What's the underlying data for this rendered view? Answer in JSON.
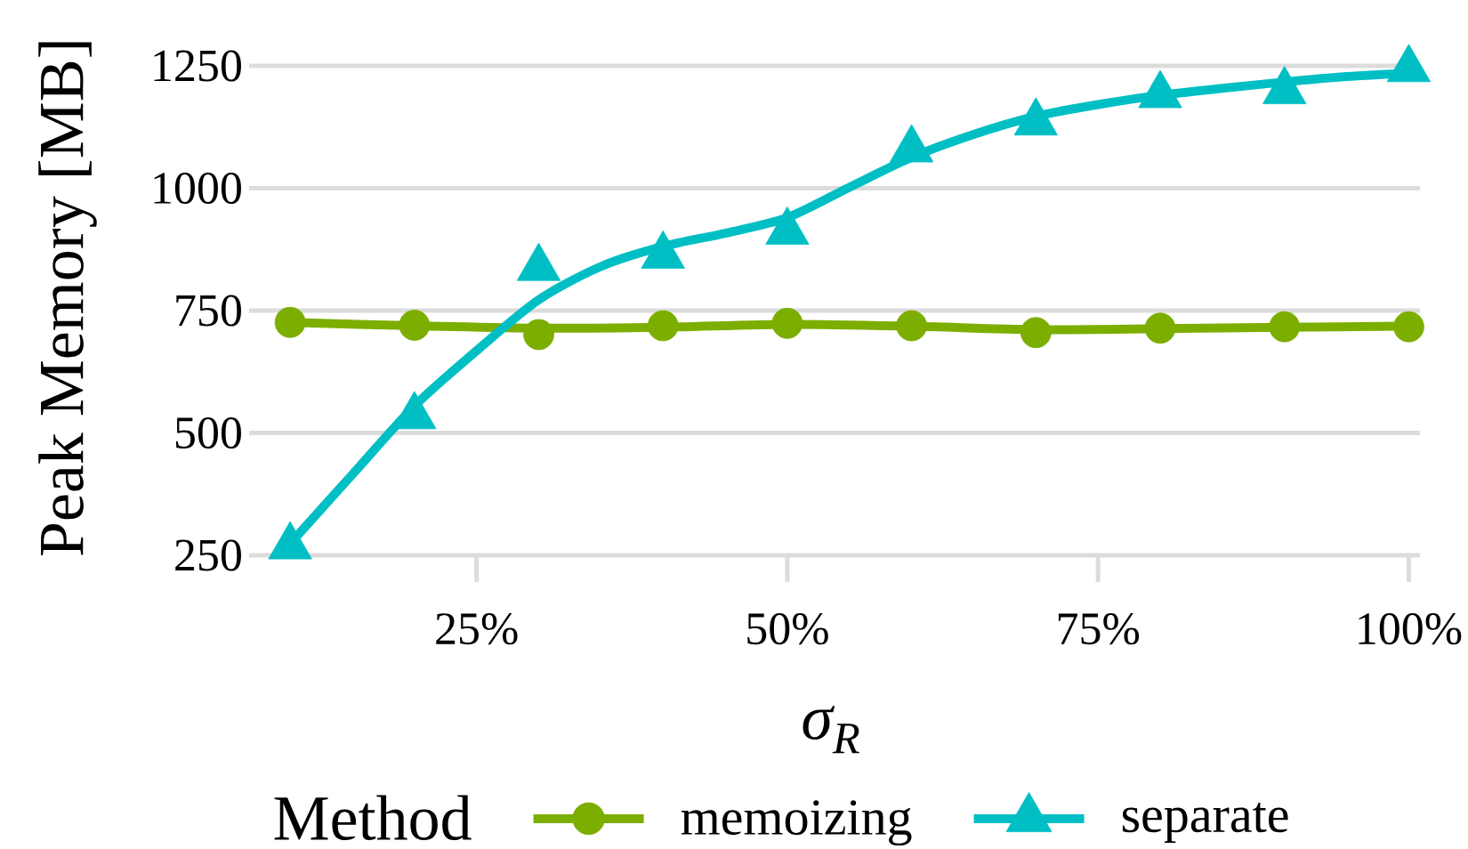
{
  "chart_data": {
    "type": "scatter",
    "xlabel": "σ$_{R}$",
    "ylabel": "Peak Memory [MB]",
    "legend_title": "Method",
    "x": [
      0.1,
      0.2,
      0.3,
      0.4,
      0.5,
      0.6,
      0.7,
      0.8,
      0.9,
      1.0
    ],
    "series": [
      {
        "type": "line",
        "color": "#7cae00",
        "x": [
          0.1,
          0.2,
          0.3,
          0.4,
          0.5,
          0.6,
          0.7,
          0.8,
          0.9,
          1.0
        ],
        "values": [
          726,
          719,
          714,
          716,
          722,
          718,
          711,
          713,
          716,
          718
        ]
      },
      {
        "name": "memoizing",
        "color": "#7cae00",
        "marker": "circle",
        "values": [
          726,
          720,
          701,
          719,
          724,
          719,
          705,
          714,
          717,
          717
        ]
      },
      {
        "type": "line",
        "color": "#00bfc4",
        "x": [
          0.1,
          0.15,
          0.2,
          0.25,
          0.3,
          0.35,
          0.4,
          0.45,
          0.5,
          0.55,
          0.6,
          0.65,
          0.7,
          0.75,
          0.8,
          0.85,
          0.9,
          0.95,
          1.0
        ],
        "values": [
          274,
          415,
          555,
          668,
          772,
          840,
          881,
          908,
          940,
          1002,
          1063,
          1110,
          1147,
          1171,
          1190,
          1204,
          1217,
          1228,
          1235
        ]
      },
      {
        "name": "separate",
        "color": "#00bfc4",
        "marker": "triangle",
        "values": [
          268,
          534,
          837,
          862,
          911,
          1079,
          1134,
          1190,
          1198,
          1243
        ]
      }
    ],
    "xlim": [
      0.067,
      1.009
    ],
    "ylim": [
      250,
      1250
    ],
    "xticks": [
      {
        "value": 0.25,
        "label": "25%"
      },
      {
        "value": 0.5,
        "label": "50%"
      },
      {
        "value": 0.75,
        "label": "75%"
      },
      {
        "value": 1.0,
        "label": "100%"
      }
    ],
    "yticks": [
      250,
      500,
      750,
      1000,
      1250
    ],
    "grid": "y",
    "legend": "bottom"
  }
}
